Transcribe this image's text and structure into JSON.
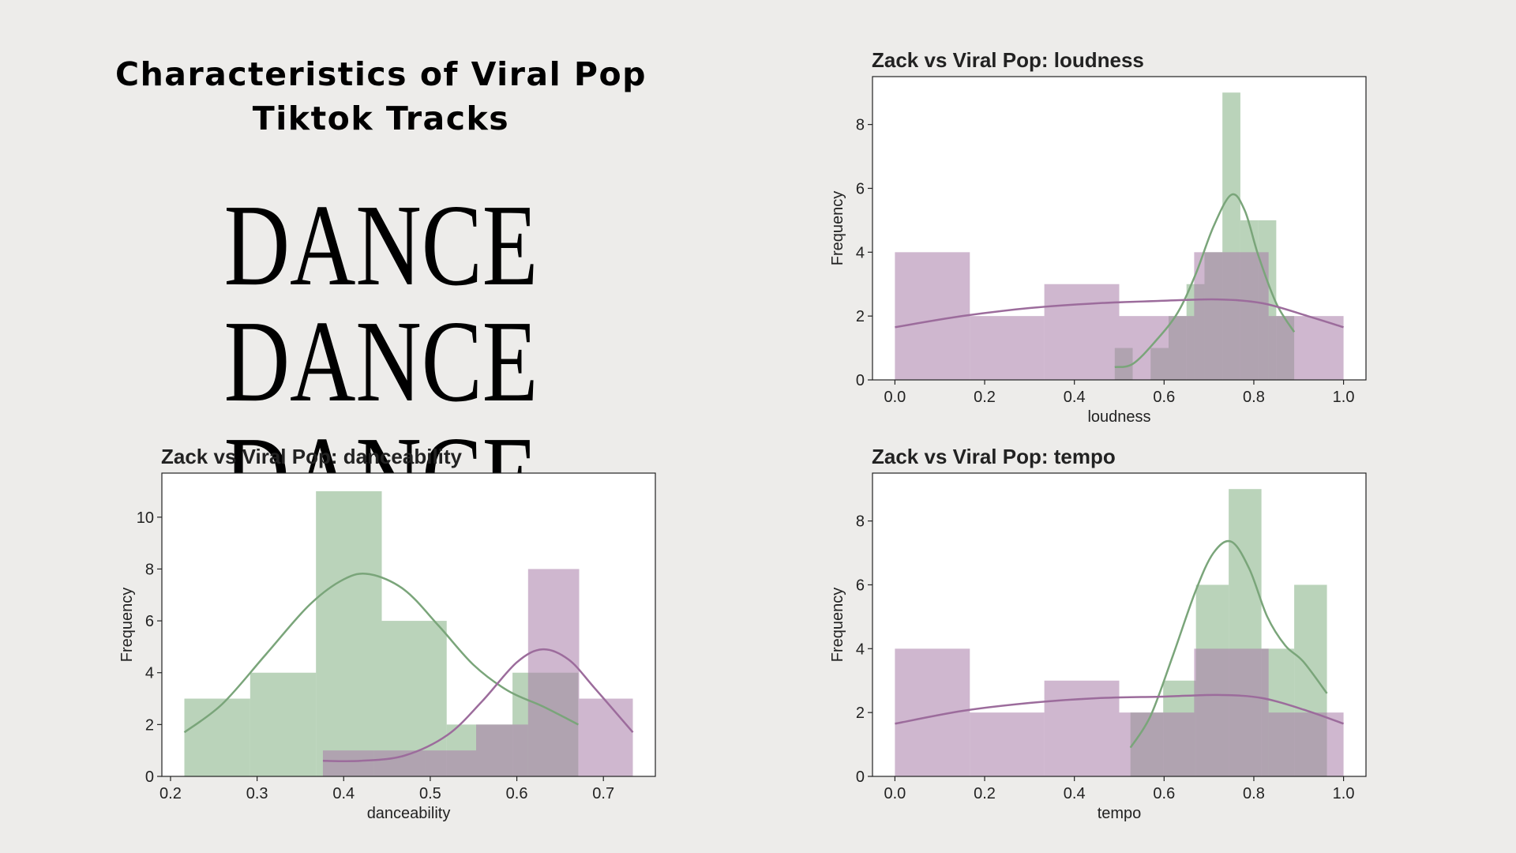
{
  "page": {
    "subtitle": "Characteristics of Viral Pop Tiktok Tracks",
    "headline": "DANCE DANCE DANCE"
  },
  "colors": {
    "background": "#edecea",
    "green": "#8fb88f",
    "green_line": "#7aa57a",
    "purple": "#a77ca7",
    "purple_line": "#9c6c9c",
    "overlap": "#8b958b"
  },
  "chart_data": [
    {
      "type": "bar",
      "title": "Zack vs Viral Pop: loudness",
      "xlabel": "loudness",
      "ylabel": "Frequency",
      "xlim": [
        -0.05,
        1.05
      ],
      "ylim": [
        0,
        9.5
      ],
      "xticks": [
        "0.0",
        "0.2",
        "0.4",
        "0.6",
        "0.8",
        "1.0"
      ],
      "yticks": [
        "0",
        "2",
        "4",
        "6",
        "8"
      ],
      "series": [
        {
          "color": "green",
          "bins": [
            {
              "x0": 0.49,
              "x1": 0.53,
              "v": 1
            },
            {
              "x0": 0.57,
              "x1": 0.61,
              "v": 1
            },
            {
              "x0": 0.61,
              "x1": 0.65,
              "v": 2
            },
            {
              "x0": 0.65,
              "x1": 0.69,
              "v": 3
            },
            {
              "x0": 0.69,
              "x1": 0.73,
              "v": 4
            },
            {
              "x0": 0.73,
              "x1": 0.77,
              "v": 9
            },
            {
              "x0": 0.77,
              "x1": 0.81,
              "v": 5
            },
            {
              "x0": 0.81,
              "x1": 0.85,
              "v": 5
            },
            {
              "x0": 0.85,
              "x1": 0.89,
              "v": 2
            }
          ],
          "kde": [
            [
              0.49,
              0.4
            ],
            [
              0.53,
              0.5
            ],
            [
              0.58,
              1.2
            ],
            [
              0.63,
              2.1
            ],
            [
              0.67,
              3.3
            ],
            [
              0.71,
              4.8
            ],
            [
              0.75,
              5.8
            ],
            [
              0.78,
              5.3
            ],
            [
              0.81,
              3.9
            ],
            [
              0.85,
              2.4
            ],
            [
              0.89,
              1.5
            ]
          ]
        },
        {
          "color": "purple",
          "bins": [
            {
              "x0": 0.0,
              "x1": 0.167,
              "v": 4
            },
            {
              "x0": 0.167,
              "x1": 0.333,
              "v": 2
            },
            {
              "x0": 0.333,
              "x1": 0.5,
              "v": 3
            },
            {
              "x0": 0.5,
              "x1": 0.667,
              "v": 2
            },
            {
              "x0": 0.667,
              "x1": 0.833,
              "v": 4
            },
            {
              "x0": 0.833,
              "x1": 1.0,
              "v": 2
            }
          ],
          "kde": [
            [
              0.0,
              1.65
            ],
            [
              0.15,
              2.0
            ],
            [
              0.3,
              2.25
            ],
            [
              0.45,
              2.4
            ],
            [
              0.6,
              2.48
            ],
            [
              0.72,
              2.52
            ],
            [
              0.82,
              2.4
            ],
            [
              0.92,
              2.0
            ],
            [
              1.0,
              1.65
            ]
          ]
        }
      ]
    },
    {
      "type": "bar",
      "title": "Zack vs Viral Pop: danceability",
      "xlabel": "danceability",
      "ylabel": "Frequency",
      "xlim": [
        0.19,
        0.76
      ],
      "ylim": [
        0,
        11.7
      ],
      "xticks": [
        "0.2",
        "0.3",
        "0.4",
        "0.5",
        "0.6",
        "0.7"
      ],
      "yticks": [
        "0",
        "2",
        "4",
        "6",
        "8",
        "10"
      ],
      "series": [
        {
          "color": "green",
          "bins": [
            {
              "x0": 0.216,
              "x1": 0.292,
              "v": 3
            },
            {
              "x0": 0.292,
              "x1": 0.368,
              "v": 4
            },
            {
              "x0": 0.368,
              "x1": 0.444,
              "v": 11
            },
            {
              "x0": 0.444,
              "x1": 0.519,
              "v": 6
            },
            {
              "x0": 0.519,
              "x1": 0.595,
              "v": 2
            },
            {
              "x0": 0.595,
              "x1": 0.671,
              "v": 4
            }
          ],
          "kde": [
            [
              0.216,
              1.7
            ],
            [
              0.26,
              2.8
            ],
            [
              0.31,
              4.7
            ],
            [
              0.36,
              6.6
            ],
            [
              0.4,
              7.6
            ],
            [
              0.43,
              7.8
            ],
            [
              0.47,
              7.2
            ],
            [
              0.51,
              5.8
            ],
            [
              0.55,
              4.3
            ],
            [
              0.59,
              3.3
            ],
            [
              0.63,
              2.7
            ],
            [
              0.671,
              2.0
            ]
          ]
        },
        {
          "color": "purple",
          "bins": [
            {
              "x0": 0.376,
              "x1": 0.435,
              "v": 1
            },
            {
              "x0": 0.435,
              "x1": 0.494,
              "v": 1
            },
            {
              "x0": 0.494,
              "x1": 0.553,
              "v": 1
            },
            {
              "x0": 0.553,
              "x1": 0.613,
              "v": 2
            },
            {
              "x0": 0.613,
              "x1": 0.672,
              "v": 8
            },
            {
              "x0": 0.672,
              "x1": 0.734,
              "v": 3
            }
          ],
          "kde": [
            [
              0.376,
              0.6
            ],
            [
              0.42,
              0.6
            ],
            [
              0.47,
              0.8
            ],
            [
              0.52,
              1.6
            ],
            [
              0.56,
              2.9
            ],
            [
              0.6,
              4.4
            ],
            [
              0.63,
              4.9
            ],
            [
              0.66,
              4.5
            ],
            [
              0.69,
              3.4
            ],
            [
              0.734,
              1.7
            ]
          ]
        }
      ]
    },
    {
      "type": "bar",
      "title": "Zack vs Viral Pop: tempo",
      "xlabel": "tempo",
      "ylabel": "Frequency",
      "xlim": [
        -0.05,
        1.05
      ],
      "ylim": [
        0,
        9.5
      ],
      "xticks": [
        "0.0",
        "0.2",
        "0.4",
        "0.6",
        "0.8",
        "1.0"
      ],
      "yticks": [
        "0",
        "2",
        "4",
        "6",
        "8"
      ],
      "series": [
        {
          "color": "green",
          "bins": [
            {
              "x0": 0.525,
              "x1": 0.598,
              "v": 2
            },
            {
              "x0": 0.598,
              "x1": 0.671,
              "v": 3
            },
            {
              "x0": 0.671,
              "x1": 0.744,
              "v": 6
            },
            {
              "x0": 0.744,
              "x1": 0.817,
              "v": 9
            },
            {
              "x0": 0.817,
              "x1": 0.89,
              "v": 4
            },
            {
              "x0": 0.89,
              "x1": 0.963,
              "v": 6
            }
          ],
          "kde": [
            [
              0.525,
              0.9
            ],
            [
              0.57,
              1.9
            ],
            [
              0.62,
              3.8
            ],
            [
              0.67,
              5.8
            ],
            [
              0.71,
              7.0
            ],
            [
              0.75,
              7.35
            ],
            [
              0.79,
              6.5
            ],
            [
              0.83,
              5.0
            ],
            [
              0.87,
              4.1
            ],
            [
              0.91,
              3.6
            ],
            [
              0.963,
              2.6
            ]
          ]
        },
        {
          "color": "purple",
          "bins": [
            {
              "x0": 0.0,
              "x1": 0.167,
              "v": 4
            },
            {
              "x0": 0.167,
              "x1": 0.333,
              "v": 2
            },
            {
              "x0": 0.333,
              "x1": 0.5,
              "v": 3
            },
            {
              "x0": 0.5,
              "x1": 0.667,
              "v": 2
            },
            {
              "x0": 0.667,
              "x1": 0.833,
              "v": 4
            },
            {
              "x0": 0.833,
              "x1": 1.0,
              "v": 2
            }
          ],
          "kde": [
            [
              0.0,
              1.65
            ],
            [
              0.15,
              2.05
            ],
            [
              0.3,
              2.3
            ],
            [
              0.45,
              2.45
            ],
            [
              0.6,
              2.5
            ],
            [
              0.72,
              2.55
            ],
            [
              0.82,
              2.45
            ],
            [
              0.92,
              2.05
            ],
            [
              1.0,
              1.65
            ]
          ]
        }
      ]
    }
  ]
}
